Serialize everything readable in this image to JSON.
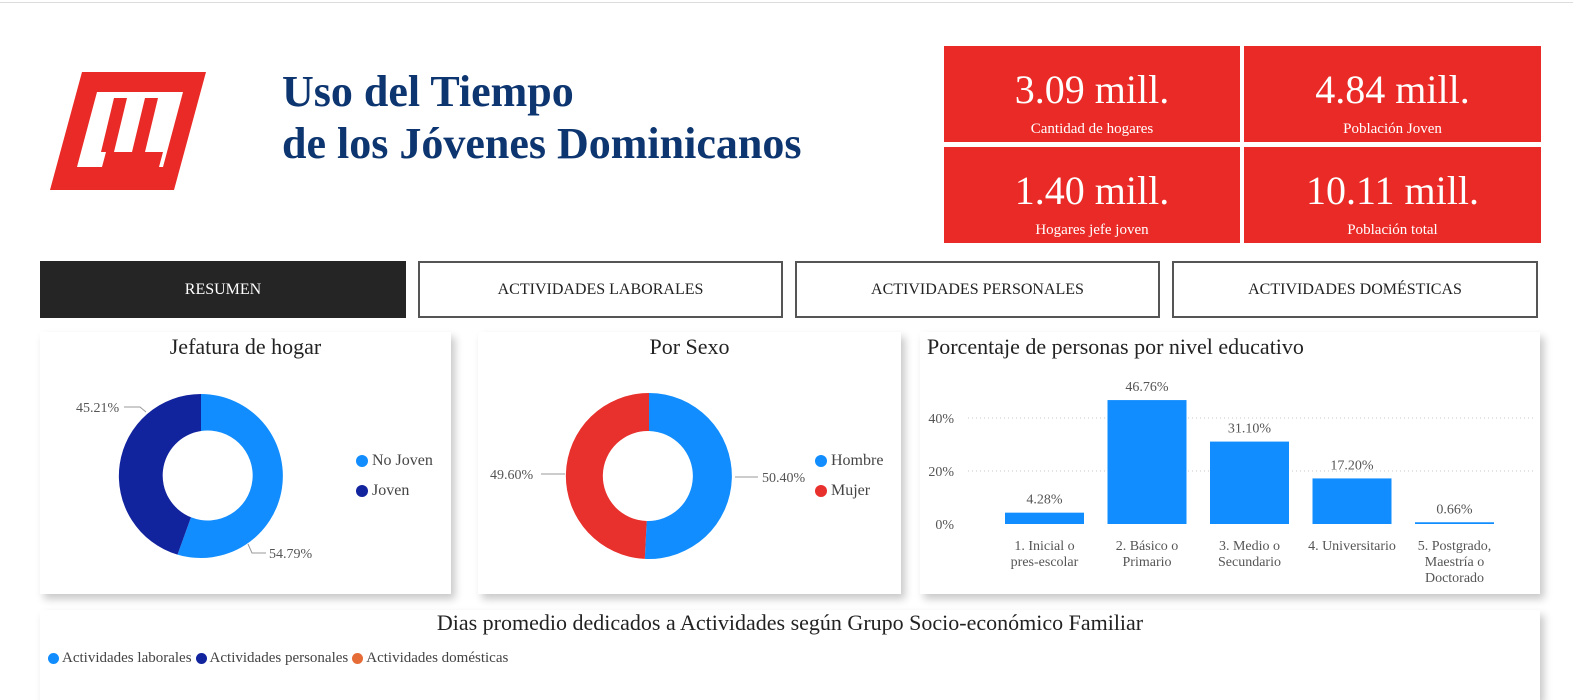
{
  "header": {
    "title_line1": "Uso del Tiempo",
    "title_line2": "de los Jóvenes Dominicanos",
    "logo_icon": "brand-logo-icon"
  },
  "kpis": [
    {
      "value": "3.09 mill.",
      "label": "Cantidad de hogares"
    },
    {
      "value": "4.84 mill.",
      "label": "Población Joven"
    },
    {
      "value": "1.40 mill.",
      "label": "Hogares jefe joven"
    },
    {
      "value": "10.11 mill.",
      "label": "Población total"
    }
  ],
  "tabs": [
    {
      "label": "RESUMEN",
      "active": true
    },
    {
      "label": "ACTIVIDADES LABORALES",
      "active": false
    },
    {
      "label": "ACTIVIDADES PERSONALES",
      "active": false
    },
    {
      "label": "ACTIVIDADES DOMÉSTICAS",
      "active": false
    }
  ],
  "colors": {
    "brand_red": "#ea2a26",
    "title_blue": "#0d3570",
    "light_blue": "#118dff",
    "dark_blue": "#12239e",
    "red": "#e8302c",
    "orange": "#e66c37"
  },
  "chart_data": [
    {
      "type": "pie",
      "title": "Jefatura de hogar",
      "series": [
        {
          "name": "No Joven",
          "value": 54.79,
          "label": "54.79%",
          "color": "#118dff"
        },
        {
          "name": "Joven",
          "value": 45.21,
          "label": "45.21%",
          "color": "#12239e"
        }
      ],
      "legend": "right"
    },
    {
      "type": "pie",
      "title": "Por Sexo",
      "series": [
        {
          "name": "Hombre",
          "value": 50.4,
          "label": "50.40%",
          "color": "#118dff"
        },
        {
          "name": "Mujer",
          "value": 49.6,
          "label": "49.60%",
          "color": "#e8302c"
        }
      ],
      "legend": "right"
    },
    {
      "type": "bar",
      "title": "Porcentaje de personas por nivel educativo",
      "categories": [
        [
          "1. Inicial o",
          "pres-escolar"
        ],
        [
          "2. Básico o",
          "Primario"
        ],
        [
          "3. Medio o",
          "Secundario"
        ],
        [
          "4. Universitario"
        ],
        [
          "5. Postgrado,",
          "Maestría o",
          "Doctorado"
        ]
      ],
      "values": [
        4.28,
        46.76,
        31.1,
        17.2,
        0.66
      ],
      "labels": [
        "4.28%",
        "46.76%",
        "31.10%",
        "17.20%",
        "0.66%"
      ],
      "yticks": [
        "0%",
        "20%",
        "40%"
      ],
      "ytick_values": [
        0,
        20,
        40
      ],
      "ylim": [
        0,
        50
      ],
      "grid": true,
      "color": "#118dff"
    },
    {
      "type": "bar",
      "title": "Dias promedio dedicados a Actividades según Grupo Socio-económico Familiar",
      "series": [
        {
          "name": "Actividades laborales",
          "color": "#118dff"
        },
        {
          "name": "Actividades personales",
          "color": "#12239e"
        },
        {
          "name": "Actividades domésticas",
          "color": "#e66c37"
        }
      ],
      "legend": "top-left"
    }
  ]
}
